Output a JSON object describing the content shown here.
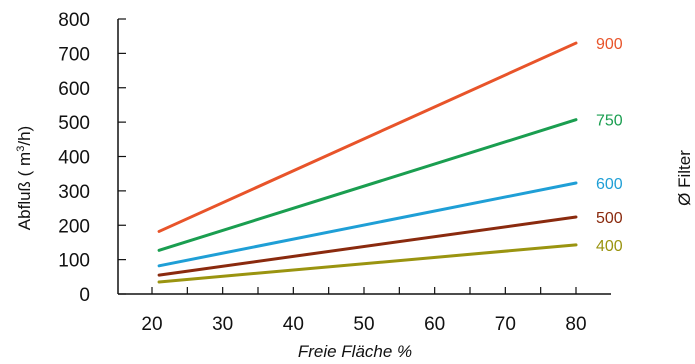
{
  "chart_data": {
    "type": "line",
    "xlabel": "Freie Fläche %",
    "ylabel_prefix": "Abfluß ( m",
    "ylabel_sup": "3",
    "ylabel_suffix": "/h)",
    "legend_title": "Ø Filter",
    "xlim": [
      20,
      80
    ],
    "ylim": [
      0,
      800
    ],
    "x_ticks": [
      "20",
      "30",
      "40",
      "50",
      "60",
      "70",
      "80"
    ],
    "y_ticks": [
      "0",
      "100",
      "200",
      "300",
      "400",
      "500",
      "600",
      "700",
      "800"
    ],
    "grid": false,
    "legend_position": "right, end of each line",
    "series": [
      {
        "name": "900",
        "color": "#e8542a",
        "x": [
          21,
          80
        ],
        "y": [
          182,
          730
        ]
      },
      {
        "name": "750",
        "color": "#1a9e50",
        "x": [
          21,
          80
        ],
        "y": [
          127,
          507
        ]
      },
      {
        "name": "600",
        "color": "#1f9fd6",
        "x": [
          21,
          80
        ],
        "y": [
          82,
          323
        ]
      },
      {
        "name": "500",
        "color": "#8a2a0e",
        "x": [
          21,
          80
        ],
        "y": [
          55,
          224
        ]
      },
      {
        "name": "400",
        "color": "#9a9410",
        "x": [
          21,
          80
        ],
        "y": [
          35,
          143
        ]
      }
    ]
  }
}
